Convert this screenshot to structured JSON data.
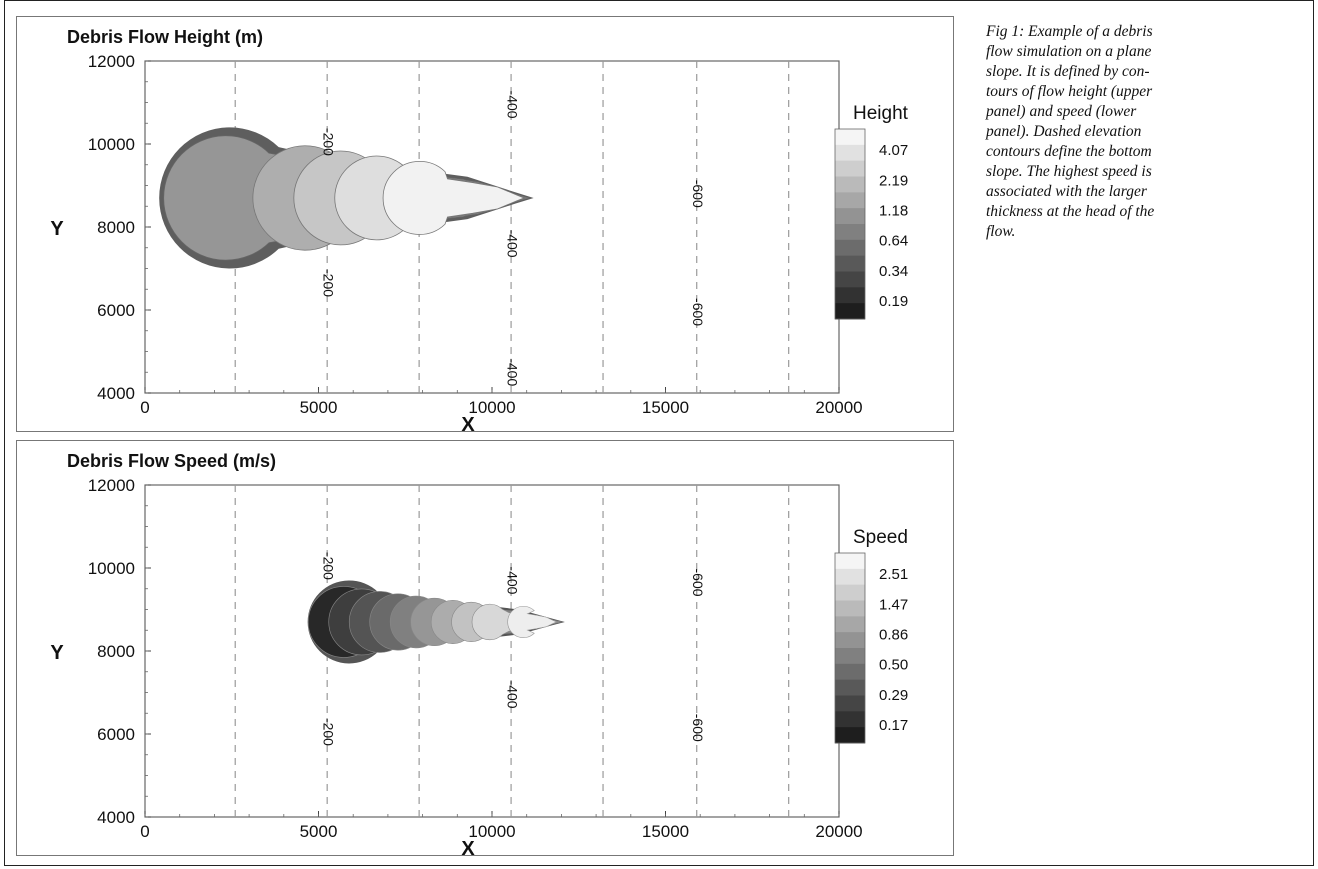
{
  "caption": {
    "lines": [
      "Fig 1: Example of a debris",
      "flow simulation on a plane",
      "slope. It is defined by con-",
      "tours of flow height (upper",
      "panel) and speed (lower",
      "panel). Dashed elevation",
      "contours define the bottom",
      "slope. The highest speed is",
      "associated with the larger",
      "thickness at the head of the",
      "flow."
    ]
  },
  "chart_data": [
    {
      "type": "contour",
      "title": "Debris Flow Height (m)",
      "xlabel": "X",
      "ylabel": "Y",
      "xlim": [
        0,
        20000
      ],
      "ylim": [
        4000,
        12000
      ],
      "x_ticks": [
        "0",
        "5000",
        "10000",
        "15000",
        "20000"
      ],
      "y_ticks": [
        "4000",
        "6000",
        "8000",
        "10000",
        "12000"
      ],
      "elevation_contours_x": [
        2600,
        5250,
        7900,
        10550,
        13200,
        15900,
        18550
      ],
      "elevation_labels": [
        {
          "text": "-200",
          "x": 5250,
          "y": 10050
        },
        {
          "text": "-200",
          "x": 5250,
          "y": 6650
        },
        {
          "text": "-400",
          "x": 10550,
          "y": 10950
        },
        {
          "text": "-400",
          "x": 10550,
          "y": 7600
        },
        {
          "text": "-400",
          "x": 10550,
          "y": 4500
        },
        {
          "text": "-600",
          "x": 15900,
          "y": 8800
        },
        {
          "text": "-600",
          "x": 15900,
          "y": 5950
        }
      ],
      "legend": {
        "title": "Height",
        "levels": [
          "4.07",
          "2.19",
          "1.18",
          "0.64",
          "0.34",
          "0.19"
        ]
      },
      "flow": {
        "tail_x": 600,
        "head_x": 11200,
        "center_y": 8700,
        "max_half_width": 1700
      }
    },
    {
      "type": "contour",
      "title": "Debris Flow Speed (m/s)",
      "xlabel": "X",
      "ylabel": "Y",
      "xlim": [
        0,
        20000
      ],
      "ylim": [
        4000,
        12000
      ],
      "x_ticks": [
        "0",
        "5000",
        "10000",
        "15000",
        "20000"
      ],
      "y_ticks": [
        "4000",
        "6000",
        "8000",
        "10000",
        "12000"
      ],
      "elevation_contours_x": [
        2600,
        5250,
        7900,
        10550,
        13200,
        15900,
        18550
      ],
      "elevation_labels": [
        {
          "text": "-200",
          "x": 5250,
          "y": 10050
        },
        {
          "text": "-200",
          "x": 5250,
          "y": 6050
        },
        {
          "text": "-400",
          "x": 10550,
          "y": 9700
        },
        {
          "text": "-400",
          "x": 10550,
          "y": 6950
        },
        {
          "text": "-600",
          "x": 15900,
          "y": 9650
        },
        {
          "text": "-600",
          "x": 15900,
          "y": 6150
        }
      ],
      "legend": {
        "title": "Speed",
        "levels": [
          "2.51",
          "1.47",
          "0.86",
          "0.50",
          "0.29",
          "0.17"
        ]
      },
      "flow": {
        "tail_x": 4800,
        "head_x": 12100,
        "center_y": 8700,
        "max_half_width": 1000
      }
    }
  ]
}
